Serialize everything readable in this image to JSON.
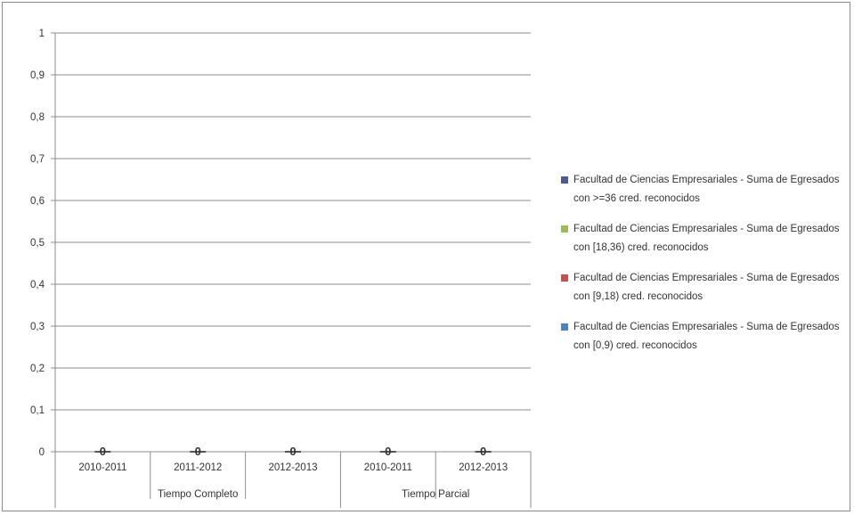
{
  "chart_data": {
    "type": "bar",
    "y_ticks": [
      "1",
      "0,9",
      "0,8",
      "0,7",
      "0,6",
      "0,5",
      "0,4",
      "0,3",
      "0,2",
      "0,1",
      "0"
    ],
    "ylim": [
      0,
      1
    ],
    "grid": true,
    "legend_position": "right",
    "groups": [
      {
        "label": "Tiempo Completo",
        "categories": [
          "2010-2011",
          "2011-2012",
          "2012-2013"
        ]
      },
      {
        "label": "Tiempo Parcial",
        "categories": [
          "2010-2011",
          "2012-2013"
        ]
      }
    ],
    "categories": [
      "2010-2011",
      "2011-2012",
      "2012-2013",
      "2010-2011",
      "2012-2013"
    ],
    "data_labels": [
      "0",
      "0",
      "0",
      "0",
      "0"
    ],
    "series": [
      {
        "name": "Facultad de Ciencias Empresariales - Suma de Egresados con >=36 cred. reconocidos",
        "color": "#4f5b8f",
        "values": [
          0,
          0,
          0,
          0,
          0
        ]
      },
      {
        "name": "Facultad de Ciencias Empresariales - Suma de Egresados con [18,36) cred. reconocidos",
        "color": "#9bbb59",
        "values": [
          0,
          0,
          0,
          0,
          0
        ]
      },
      {
        "name": "Facultad de Ciencias Empresariales - Suma de Egresados con [9,18) cred. reconocidos",
        "color": "#c0504d",
        "values": [
          0,
          0,
          0,
          0,
          0
        ]
      },
      {
        "name": "Facultad de Ciencias Empresariales - Suma de Egresados con [0,9) cred. reconocidos",
        "color": "#4f81bd",
        "values": [
          0,
          0,
          0,
          0,
          0
        ]
      }
    ]
  }
}
